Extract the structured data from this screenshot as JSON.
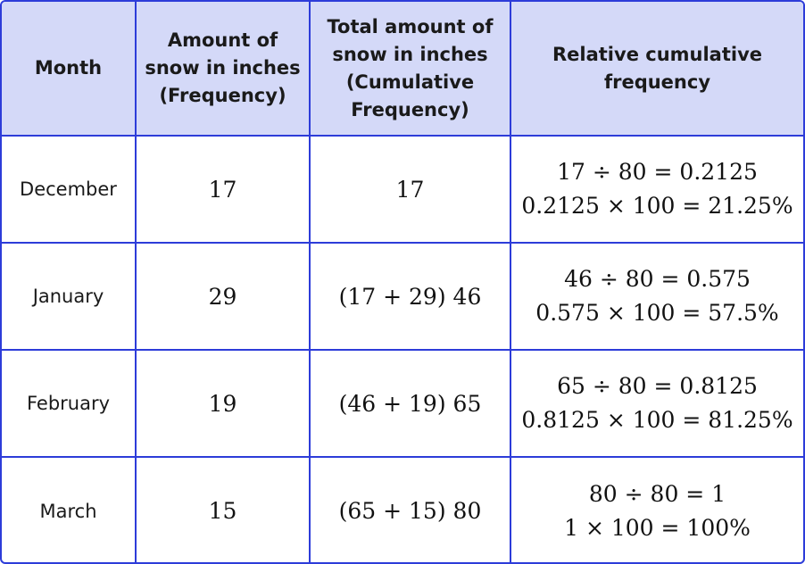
{
  "headers": {
    "month": [
      "Month"
    ],
    "frequency": [
      "Amount of",
      "snow in inches",
      "(Frequency)"
    ],
    "cumulative": [
      "Total amount of",
      "snow in inches",
      "(Cumulative",
      "Frequency)"
    ],
    "relative": [
      "Relative cumulative",
      "frequency"
    ]
  },
  "rows": [
    {
      "month": "December",
      "frequency": "17",
      "cumulative": "17",
      "relative": [
        "17 ÷ 80 = 0.2125",
        "0.2125 × 100 = 21.25%"
      ]
    },
    {
      "month": "January",
      "frequency": "29",
      "cumulative": "(17 + 29) 46",
      "relative": [
        "46 ÷ 80 = 0.575",
        "0.575 × 100 = 57.5%"
      ]
    },
    {
      "month": "February",
      "frequency": "19",
      "cumulative": "(46 + 19) 65",
      "relative": [
        "65 ÷ 80 = 0.8125",
        "0.8125 × 100 = 81.25%"
      ]
    },
    {
      "month": "March",
      "frequency": "15",
      "cumulative": "(65 + 15) 80",
      "relative": [
        "80 ÷ 80 = 1",
        "1 × 100 = 100%"
      ]
    }
  ]
}
